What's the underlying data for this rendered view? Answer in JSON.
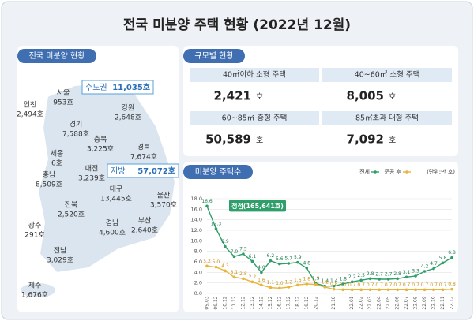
{
  "title": "전국 미분양 주택 현황 (2022년 12월)",
  "map": {
    "heading": "전국 미분양 현황",
    "callouts": [
      {
        "name": "수도권",
        "value": "11,035호"
      },
      {
        "name": "지방",
        "value": "57,072호"
      }
    ],
    "regions": [
      {
        "name": "인천",
        "value": "2,494호"
      },
      {
        "name": "서울",
        "value": "953호"
      },
      {
        "name": "경기",
        "value": "7,588호"
      },
      {
        "name": "강원",
        "value": "2,648호"
      },
      {
        "name": "충북",
        "value": "3,225호"
      },
      {
        "name": "세종",
        "value": "6호"
      },
      {
        "name": "대전",
        "value": "3,239호"
      },
      {
        "name": "충남",
        "value": "8,509호"
      },
      {
        "name": "경북",
        "value": "7,674호"
      },
      {
        "name": "대구",
        "value": "13,445호"
      },
      {
        "name": "전북",
        "value": "2,520호"
      },
      {
        "name": "울산",
        "value": "3,570호"
      },
      {
        "name": "광주",
        "value": "291호"
      },
      {
        "name": "경남",
        "value": "4,600호"
      },
      {
        "name": "부산",
        "value": "2,640호"
      },
      {
        "name": "전남",
        "value": "3,029호"
      },
      {
        "name": "제주",
        "value": "1,676호"
      }
    ]
  },
  "size": {
    "heading": "규모별 현황",
    "items": [
      {
        "label": "40㎡이하 소형 주택",
        "value": "2,421",
        "unit": "호"
      },
      {
        "label": "40~60㎡ 소형 주택",
        "value": "8,005",
        "unit": "호"
      },
      {
        "label": "60~85㎡ 중형 주택",
        "value": "50,589",
        "unit": "호"
      },
      {
        "label": "85㎡초과 대형 주택",
        "value": "7,092",
        "unit": "호"
      }
    ]
  },
  "chart_data": {
    "type": "line",
    "title": "미분양 주택수",
    "unit": "(단위:만 호)",
    "annotation": "정점(165,641호)",
    "categories": [
      "09.03",
      "09.12",
      "10.12",
      "11.12",
      "12.12",
      "13.12",
      "14.12",
      "15.12",
      "16.12",
      "17.12",
      "18.12",
      "19.12",
      "20.12",
      null,
      "21.10",
      null,
      "22.01",
      "22.02",
      "22.03",
      "22.04",
      "22.05",
      "22.06",
      "22.07",
      "22.08",
      "22.09",
      "22.10",
      "22.11",
      "22.12"
    ],
    "series": [
      {
        "name": "전체",
        "color": "#2e9e6a",
        "values": [
          16.6,
          12.3,
          8.9,
          7,
          7.5,
          6.1,
          4,
          6.2,
          5.6,
          5.7,
          5.9,
          4.8,
          1.9,
          1.4,
          1.4,
          1.8,
          2.2,
          2.5,
          2.8,
          2.7,
          2.7,
          2.8,
          3.1,
          3.3,
          4.2,
          4.7,
          5.8,
          6.8
        ],
        "value_labels": [
          "16.6",
          "12.3",
          "8.9",
          "7.0",
          "7.5",
          "6.1",
          "4.0",
          "6.2",
          "5.6",
          "5.7",
          "5.9",
          "4.8",
          "1.9",
          "1.4",
          "1.4",
          "1.8",
          "2.2",
          "2.5",
          "2.8",
          "2.7",
          "2.7",
          "2.8",
          "3.1",
          "3.3",
          "4.2",
          "4.7",
          "5.8",
          "6.8"
        ]
      },
      {
        "name": "준공 후",
        "color": "#e8b43a",
        "values": [
          5.2,
          5,
          4.3,
          3.1,
          2.8,
          2.2,
          1.6,
          1.1,
          1,
          1.2,
          1.6,
          1.8,
          1.7,
          1.2,
          0.8,
          0.7,
          0.7,
          0.7,
          0.7,
          0.7,
          0.7,
          0.7,
          0.7,
          0.7,
          0.7,
          0.7,
          0.7,
          0.8
        ],
        "value_labels": [
          "5.2",
          "5.0",
          "4.3",
          "3.1",
          "2.8",
          "2.2",
          "1.6",
          "1.1",
          "1.0",
          "1.2",
          "1.6",
          "1.8",
          "1.7",
          "1.2",
          "0.8",
          "0.7",
          "0.7",
          "0.7",
          "0.7",
          "0.7",
          "0.7",
          "0.7",
          "0.7",
          "0.7",
          "0.7",
          "0.7",
          "0.7",
          "0.8"
        ]
      }
    ],
    "ylim": [
      0,
      18
    ],
    "yticks": [
      {
        "value": 0,
        "label": "0.0"
      },
      {
        "value": 2,
        "label": "2.0"
      },
      {
        "value": 4,
        "label": "4.0"
      },
      {
        "value": 6,
        "label": "6.0"
      },
      {
        "value": 8,
        "label": "8.0"
      },
      {
        "value": 10,
        "label": "10.0"
      },
      {
        "value": 12,
        "label": "12.0"
      },
      {
        "value": 14,
        "label": "14.0"
      },
      {
        "value": 16,
        "label": "16.0"
      },
      {
        "value": 18,
        "label": "18.0"
      }
    ],
    "grid": true
  }
}
